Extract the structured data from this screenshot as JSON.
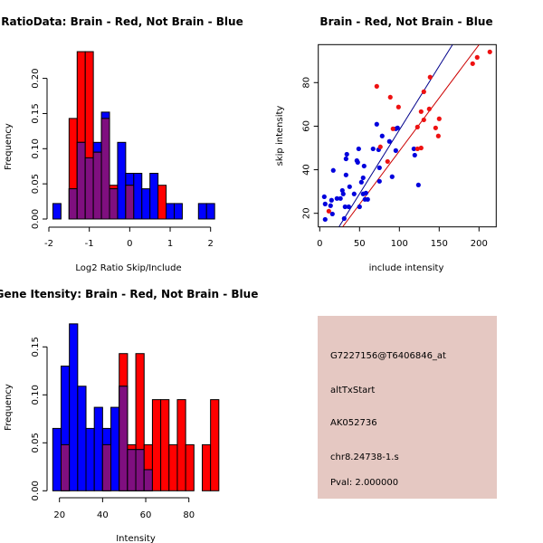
{
  "chart_data": [
    {
      "type": "bar",
      "subtype": "overlaid-histogram",
      "title": "RatioData: Brain - Red, Not Brain - Blue",
      "xlabel": "Log2 Ratio Skip/Include",
      "ylabel": "Frequency",
      "xlim": [
        -2,
        2.2
      ],
      "ylim": [
        0,
        0.24
      ],
      "xticks": [
        "-2",
        "-1",
        "0",
        "1",
        "2"
      ],
      "xtick_values": [
        -2,
        -1,
        0,
        1,
        2
      ],
      "yticks": [
        "0.00",
        "0.05",
        "0.10",
        "0.15",
        "0.20"
      ],
      "ytick_values": [
        0,
        0.05,
        0.1,
        0.15,
        0.2
      ],
      "bin_start": -1.9,
      "bin_width": 0.2,
      "series": [
        {
          "name": "Not Brain",
          "color": "#0000ff",
          "values": [
            0.022,
            0,
            0.043,
            0.109,
            0.087,
            0.109,
            0.152,
            0.043,
            0.109,
            0.065,
            0.065,
            0.043,
            0.065,
            0,
            0.022,
            0.022,
            0,
            0,
            0.022,
            0.022
          ]
        },
        {
          "name": "Brain",
          "color": "#ff0000",
          "values": [
            0,
            0,
            0.143,
            0.238,
            0.238,
            0.095,
            0.143,
            0.048,
            0,
            0.048,
            0,
            0,
            0,
            0.048,
            0,
            0,
            0,
            0,
            0,
            0
          ]
        }
      ],
      "overlap_color": "#7f0f7f"
    },
    {
      "type": "scatter",
      "title": "Brain - Red, Not Brain - Blue",
      "xlabel": "include intensity",
      "ylabel": "skip intensity",
      "xlim": [
        -3,
        220
      ],
      "ylim": [
        14,
        97
      ],
      "xticks": [
        "0",
        "50",
        "100",
        "150",
        "200"
      ],
      "xtick_values": [
        0,
        50,
        100,
        150,
        200
      ],
      "yticks": [
        "20",
        "40",
        "60",
        "80"
      ],
      "ytick_values": [
        20,
        40,
        60,
        80
      ],
      "series": [
        {
          "name": "Not Brain",
          "color": "#0000dd",
          "points": [
            [
              5.7,
              27.6
            ],
            [
              6.8,
              24.3
            ],
            [
              6.8,
              17.2
            ],
            [
              13.6,
              23.5
            ],
            [
              14.8,
              26
            ],
            [
              15.9,
              19.7
            ],
            [
              17,
              39.7
            ],
            [
              21.6,
              26.8
            ],
            [
              26,
              26.8
            ],
            [
              28.4,
              30.5
            ],
            [
              29.5,
              28.9
            ],
            [
              30.7,
              17.6
            ],
            [
              31.8,
              23
            ],
            [
              33,
              45
            ],
            [
              33,
              37.6
            ],
            [
              34,
              47.1
            ],
            [
              36.4,
              23
            ],
            [
              37.5,
              32.2
            ],
            [
              43.2,
              28.9
            ],
            [
              46.6,
              44.2
            ],
            [
              47.7,
              43.4
            ],
            [
              48.9,
              49.6
            ],
            [
              50,
              23
            ],
            [
              52.3,
              34.3
            ],
            [
              54.5,
              36.3
            ],
            [
              55.7,
              41.7
            ],
            [
              54.5,
              28.9
            ],
            [
              56.8,
              26.4
            ],
            [
              58,
              29.3
            ],
            [
              60.2,
              26.4
            ],
            [
              67,
              49.6
            ],
            [
              71.6,
              60.9
            ],
            [
              73.9,
              49.2
            ],
            [
              75,
              40.9
            ],
            [
              75,
              34.7
            ],
            [
              78.4,
              55.5
            ],
            [
              87.5,
              53
            ],
            [
              90.9,
              36.8
            ],
            [
              95.5,
              58.8
            ],
            [
              97.7,
              59.2
            ],
            [
              95.5,
              48.8
            ],
            [
              118.2,
              49.6
            ],
            [
              119.3,
              46.7
            ],
            [
              123.9,
              33
            ]
          ],
          "fit_line": [
            [
              24.2,
              13.8
            ],
            [
              166.7,
              97.4
            ]
          ],
          "line_color": "#00008b"
        },
        {
          "name": "Brain",
          "color": "#ee1111",
          "points": [
            [
              11.4,
              21
            ],
            [
              71.6,
              78.3
            ],
            [
              76.1,
              50.5
            ],
            [
              85.2,
              43.8
            ],
            [
              88.6,
              73.3
            ],
            [
              92,
              58.8
            ],
            [
              98.9,
              68.8
            ],
            [
              122.7,
              59.6
            ],
            [
              122.7,
              49.6
            ],
            [
              127.3,
              50
            ],
            [
              127.3,
              66.7
            ],
            [
              130.7,
              75.8
            ],
            [
              130.7,
              62.9
            ],
            [
              137.5,
              67.9
            ],
            [
              138.6,
              82.5
            ],
            [
              145.5,
              59.2
            ],
            [
              148.9,
              55.5
            ],
            [
              150,
              63.4
            ],
            [
              192,
              88.7
            ],
            [
              197.7,
              91.6
            ],
            [
              213.6,
              94.1
            ]
          ],
          "fit_line": [
            [
              28.8,
              13.8
            ],
            [
              200,
              97.4
            ]
          ],
          "line_color": "#cc0000"
        }
      ]
    },
    {
      "type": "bar",
      "subtype": "overlaid-histogram",
      "title": "Gene Itensity: Brain - Red, Not Brain - Blue",
      "xlabel": "Intensity",
      "ylabel": "Frequency",
      "xlim": [
        15,
        96
      ],
      "ylim": [
        0,
        0.18
      ],
      "xticks": [
        "20",
        "40",
        "60",
        "80"
      ],
      "xtick_values": [
        20,
        40,
        60,
        80
      ],
      "yticks": [
        "0.00",
        "0.05",
        "0.10",
        "0.15"
      ],
      "ytick_values": [
        0,
        0.05,
        0.1,
        0.15
      ],
      "bin_start": 16.9,
      "bin_width": 3.85,
      "series": [
        {
          "name": "Not Brain",
          "color": "#0000ff",
          "values": [
            0.065,
            0.13,
            0.174,
            0.109,
            0.065,
            0.087,
            0.065,
            0.087,
            0.109,
            0.043,
            0.043,
            0.022,
            0,
            0,
            0,
            0,
            0,
            0,
            0,
            0
          ]
        },
        {
          "name": "Brain",
          "color": "#ff0000",
          "values": [
            0,
            0.048,
            0,
            0,
            0,
            0,
            0.048,
            0,
            0.143,
            0.048,
            0.143,
            0.048,
            0.095,
            0.095,
            0.048,
            0.095,
            0.048,
            0,
            0.048,
            0.095
          ]
        }
      ],
      "overlap_color": "#7f0f7f"
    }
  ],
  "info_panel": {
    "probe_id": "G7227156@T6406846_at",
    "event_type": "altTxStart",
    "accession": "AK052736",
    "locus": "chr8.24738-1.s",
    "pval": "Pval: 2.000000",
    "background_color": "#e5c8c2",
    "pval_color": "#a00000"
  }
}
